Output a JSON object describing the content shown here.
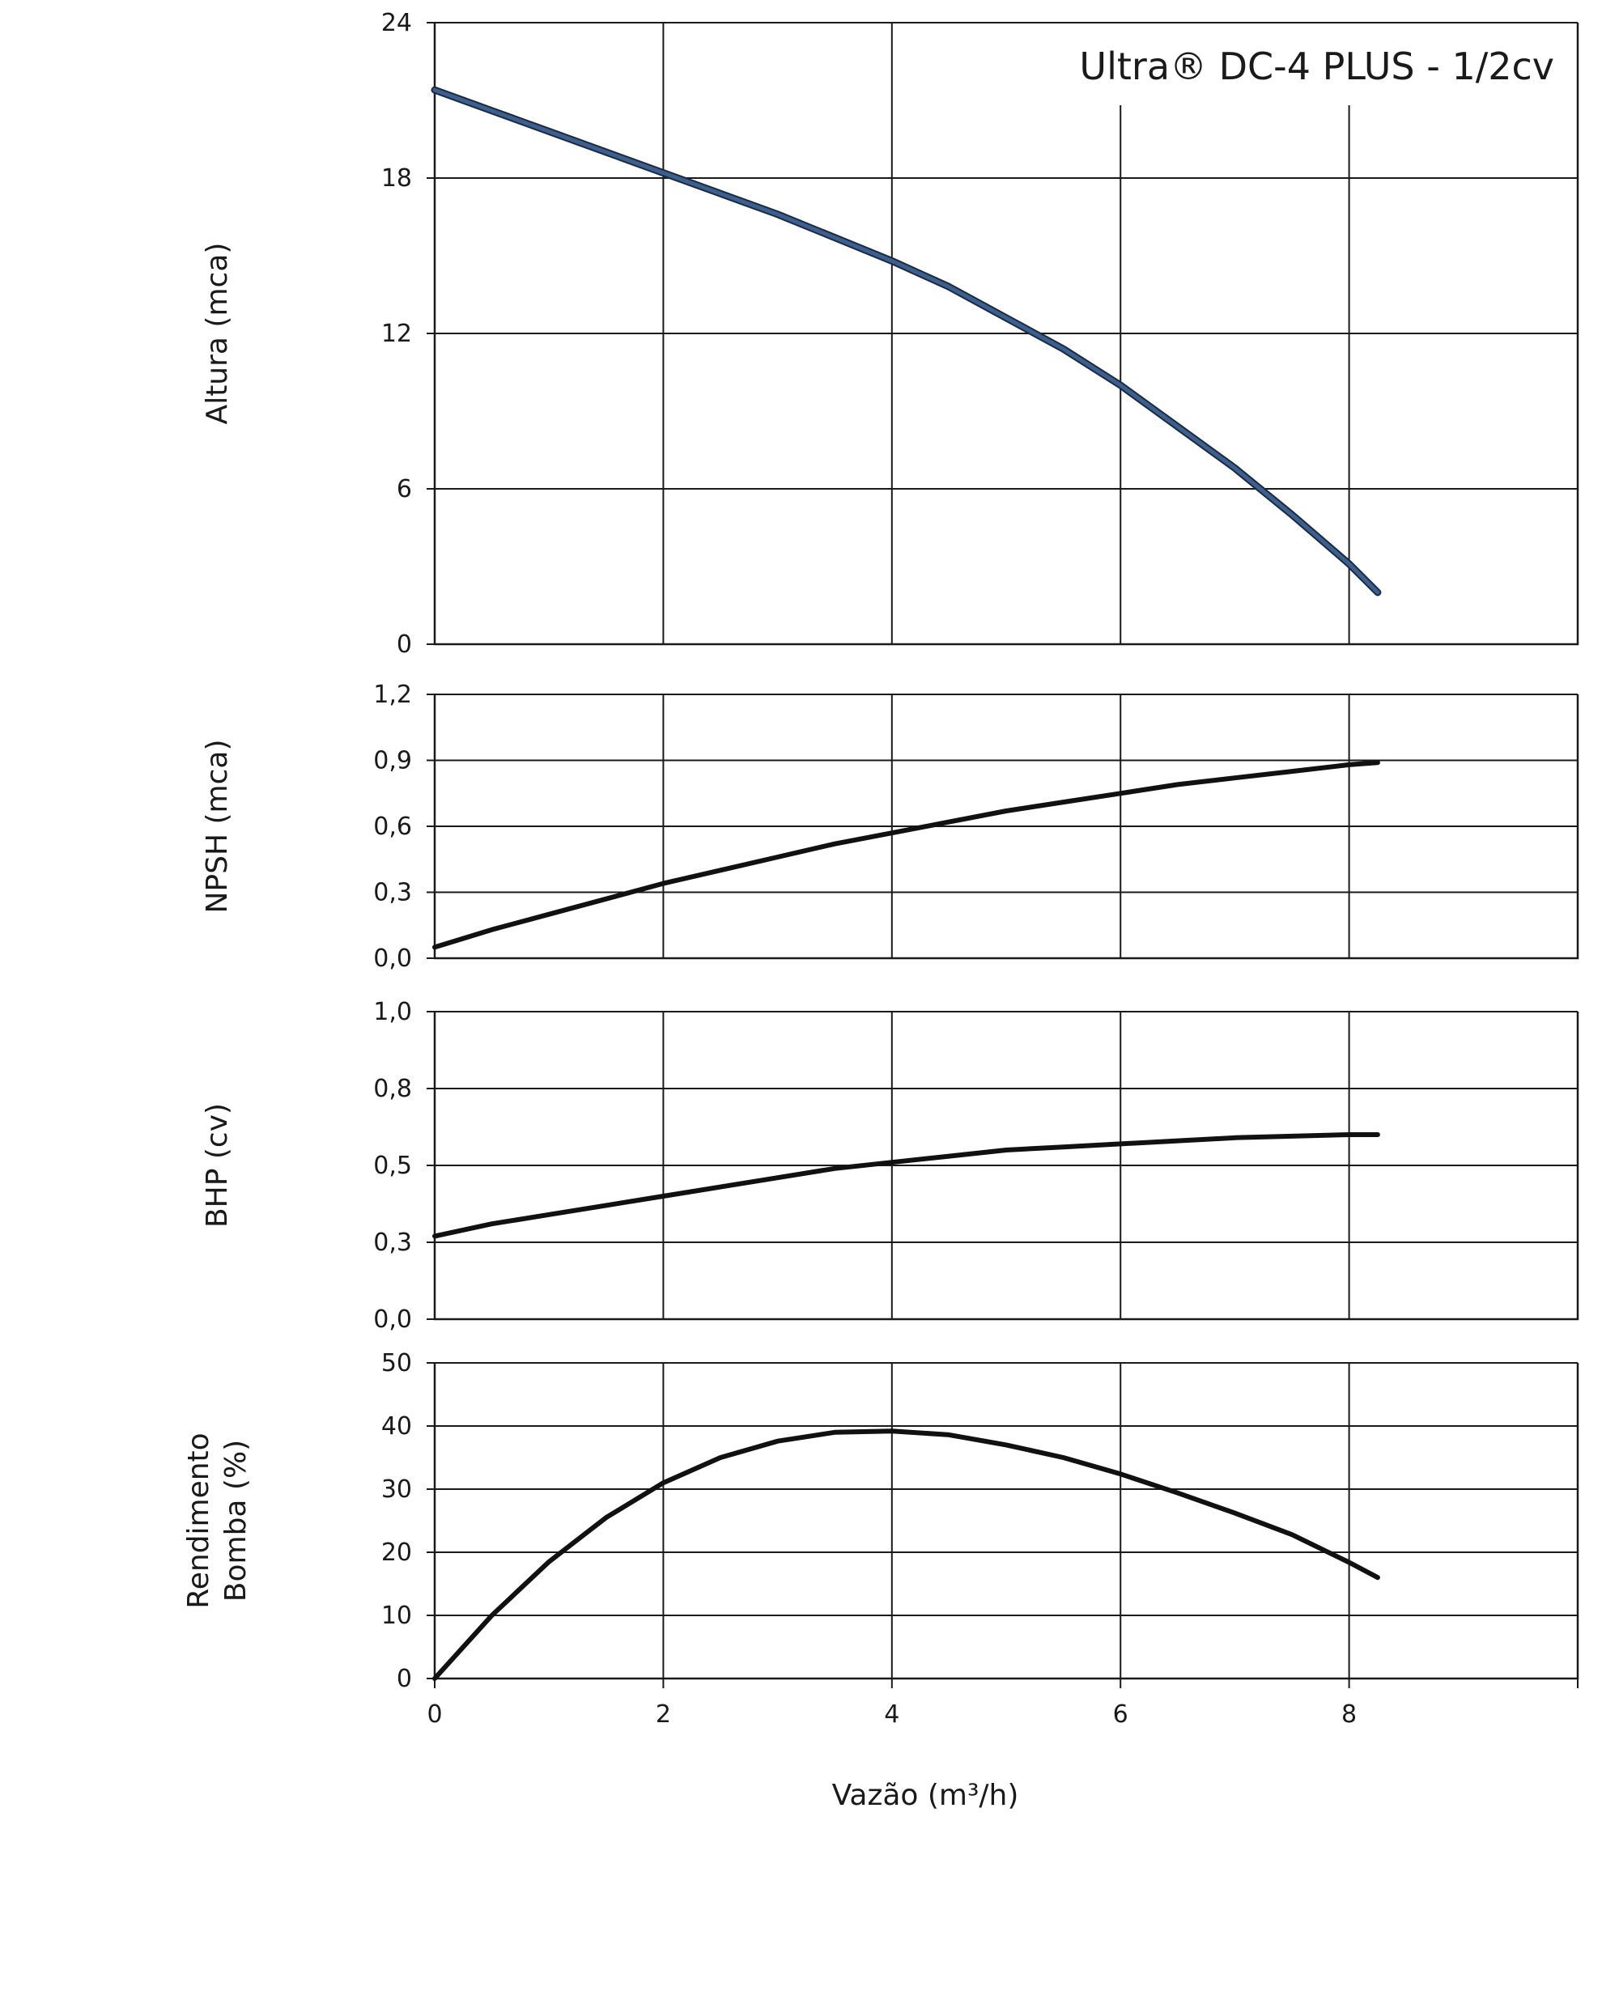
{
  "chart_data": [
    {
      "type": "line",
      "id": "altura",
      "title": "Ultra® DC-4 PLUS - 1/2cv",
      "ylabel": [
        "Altura (mca)"
      ],
      "ylim": [
        0,
        24
      ],
      "yticks": [
        0,
        6,
        12,
        18,
        24
      ],
      "ytick_labels": [
        "0",
        "6",
        "12",
        "18",
        "24"
      ],
      "xlim": [
        0,
        10
      ],
      "xticks": [
        0,
        2,
        4,
        6,
        8
      ],
      "series": [
        {
          "color": "#3b5f8e",
          "x": [
            0,
            0.5,
            1,
            1.5,
            2,
            2.5,
            3,
            3.5,
            4,
            4.5,
            5,
            5.5,
            6,
            6.5,
            7,
            7.5,
            8,
            8.25
          ],
          "y": [
            21.4,
            20.6,
            19.8,
            19.0,
            18.2,
            17.4,
            16.6,
            15.7,
            14.8,
            13.8,
            12.6,
            11.4,
            10.0,
            8.4,
            6.8,
            5.0,
            3.1,
            2.0
          ]
        }
      ]
    },
    {
      "type": "line",
      "id": "npsh",
      "ylabel": [
        "NPSH (mca)"
      ],
      "ylim": [
        0,
        1.2
      ],
      "yticks": [
        0,
        0.3,
        0.6,
        0.9,
        1.2
      ],
      "ytick_labels": [
        "0,0",
        "0,3",
        "0,6",
        "0,9",
        "1,2"
      ],
      "xlim": [
        0,
        10
      ],
      "xticks": [
        0,
        2,
        4,
        6,
        8
      ],
      "series": [
        {
          "color": "#111111",
          "x": [
            0,
            0.5,
            1,
            1.5,
            2,
            2.5,
            3,
            3.5,
            4,
            4.5,
            5,
            5.5,
            6,
            6.5,
            7,
            7.5,
            8,
            8.25
          ],
          "y": [
            0.05,
            0.13,
            0.2,
            0.27,
            0.34,
            0.4,
            0.46,
            0.52,
            0.57,
            0.62,
            0.67,
            0.71,
            0.75,
            0.79,
            0.82,
            0.85,
            0.88,
            0.89
          ]
        }
      ]
    },
    {
      "type": "line",
      "id": "bhp",
      "ylabel": [
        "BHP (cv)"
      ],
      "ylim": [
        0,
        1.0
      ],
      "yticks": [
        0,
        0.25,
        0.5,
        0.75,
        1.0
      ],
      "ytick_labels": [
        "0,0",
        "0,3",
        "0,5",
        "0,8",
        "1,0"
      ],
      "xlim": [
        0,
        10
      ],
      "xticks": [
        0,
        2,
        4,
        6,
        8
      ],
      "series": [
        {
          "color": "#111111",
          "x": [
            0,
            0.5,
            1,
            1.5,
            2,
            2.5,
            3,
            3.5,
            4,
            4.5,
            5,
            5.5,
            6,
            6.5,
            7,
            7.5,
            8,
            8.25
          ],
          "y": [
            0.27,
            0.31,
            0.34,
            0.37,
            0.4,
            0.43,
            0.46,
            0.49,
            0.51,
            0.53,
            0.55,
            0.56,
            0.57,
            0.58,
            0.59,
            0.595,
            0.6,
            0.6
          ]
        }
      ]
    },
    {
      "type": "line",
      "id": "rendimento",
      "ylabel": [
        "Rendimento",
        "Bomba (%)"
      ],
      "xlabel": "Vazão (m³/h)",
      "ylim": [
        0,
        50
      ],
      "yticks": [
        0,
        10,
        20,
        30,
        40,
        50
      ],
      "ytick_labels": [
        "0",
        "10",
        "20",
        "30",
        "40",
        "50"
      ],
      "xlim": [
        0,
        10
      ],
      "xticks": [
        0,
        2,
        4,
        6,
        8
      ],
      "xtick_labels": [
        "0",
        "2",
        "4",
        "6",
        "8"
      ],
      "series": [
        {
          "color": "#111111",
          "x": [
            0,
            0.5,
            1,
            1.5,
            2,
            2.5,
            3,
            3.5,
            4,
            4.5,
            5,
            5.5,
            6,
            6.5,
            7,
            7.5,
            8,
            8.25
          ],
          "y": [
            0,
            10,
            18.5,
            25.5,
            31,
            35,
            37.6,
            39.0,
            39.2,
            38.6,
            37,
            35,
            32.4,
            29.4,
            26.2,
            22.8,
            18.4,
            16
          ]
        }
      ]
    }
  ]
}
